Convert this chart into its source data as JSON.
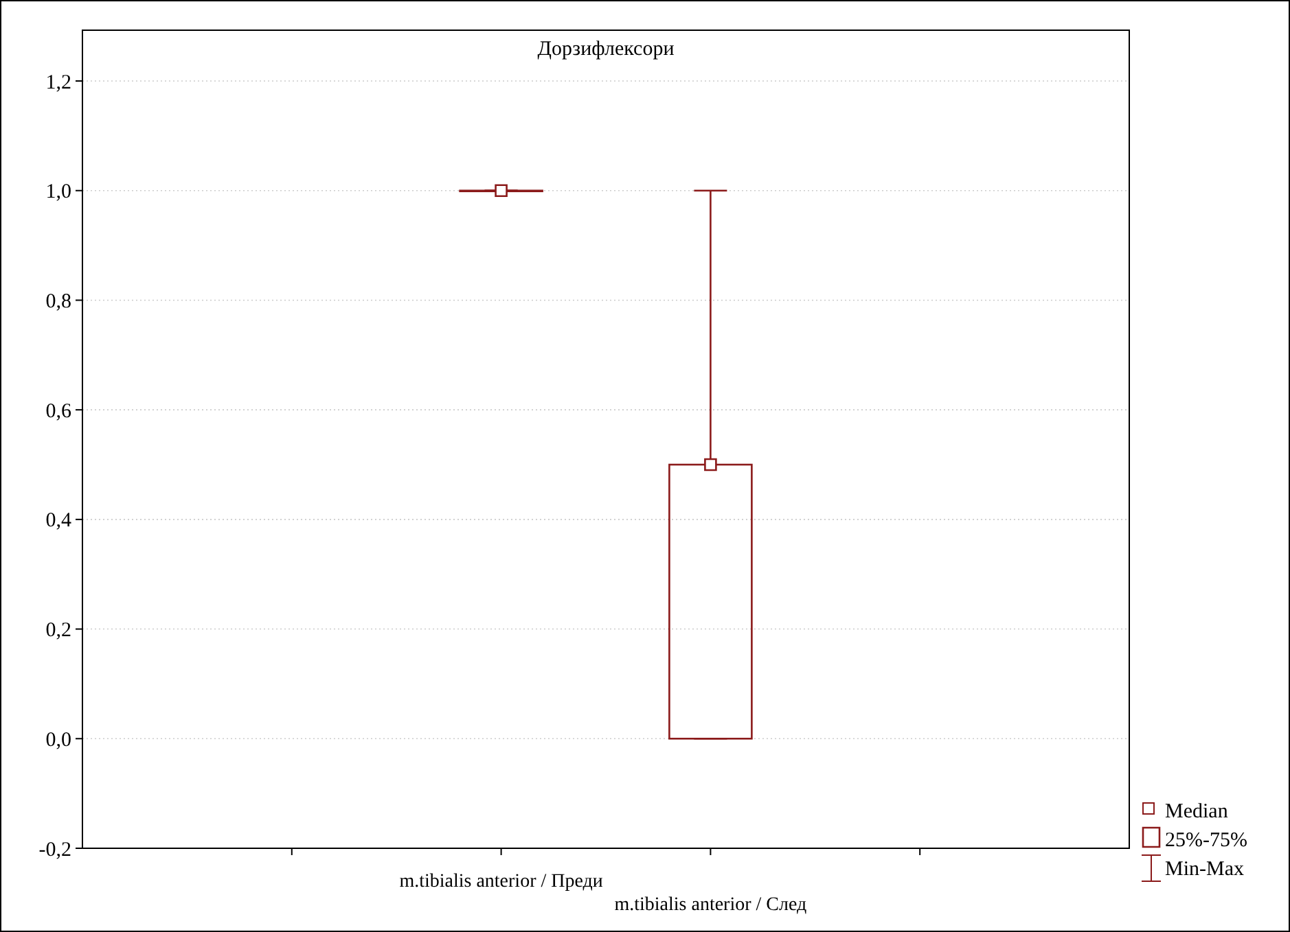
{
  "chart_data": {
    "type": "box",
    "title": "Дорзифлексори",
    "categories": [
      null,
      "m.tibialis anterior  / Преди",
      "m.tibialis anterior /  След",
      null
    ],
    "series": [
      {
        "color": "#8b1a1a",
        "boxes": [
          null,
          {
            "low": 1,
            "q1": 1,
            "median": 1,
            "q3": 1,
            "high": 1
          },
          {
            "low": 0,
            "q1": 0,
            "median": 0.5,
            "q3": 0.5,
            "high": 1
          },
          null
        ]
      }
    ],
    "ylim": [
      -0.2,
      1.2
    ],
    "yticks": [
      {
        "value": -0.2,
        "label": "-0,2"
      },
      {
        "value": 0,
        "label": "0,0"
      },
      {
        "value": 0.2,
        "label": "0,2"
      },
      {
        "value": 0.4,
        "label": "0,4"
      },
      {
        "value": 0.6,
        "label": "0,6"
      },
      {
        "value": 0.8,
        "label": "0,8"
      },
      {
        "value": 1,
        "label": "1,0"
      },
      {
        "value": 1.2,
        "label": "1,2"
      }
    ],
    "grid": "y",
    "annotations": [
      "Median",
      "25%-75%",
      "Min-Max"
    ]
  }
}
